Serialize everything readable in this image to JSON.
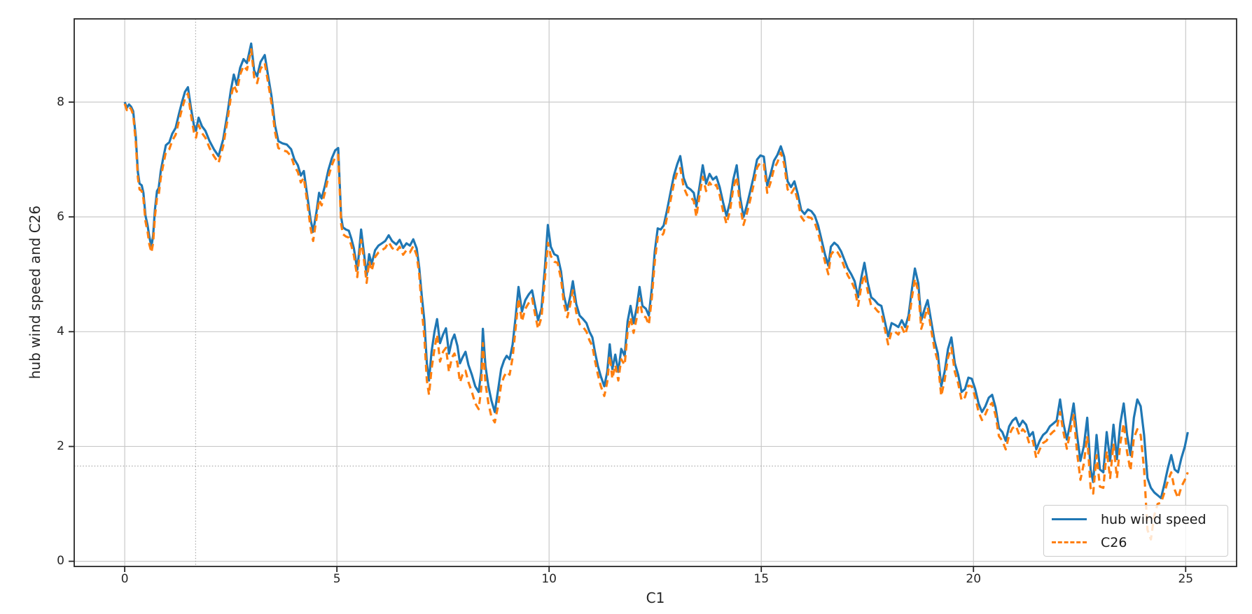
{
  "chart_data": {
    "type": "line",
    "title": "",
    "xlabel": "C1",
    "ylabel": "hub wind speed and C26",
    "xlim": [
      -1.19,
      26.2
    ],
    "ylim": [
      -0.09,
      9.45
    ],
    "x_ticks": [
      0,
      5,
      10,
      15,
      20,
      25
    ],
    "y_ticks": [
      0,
      2,
      4,
      6,
      8
    ],
    "grid": true,
    "legend_position": "lower right",
    "crosshair": {
      "x": 1.67,
      "y": 1.66
    },
    "colors": {
      "series1": "#1f77b4",
      "series2": "#ff7f0e",
      "grid": "#c9c9c9",
      "crosshair": "#999999",
      "spine": "#262626",
      "text": "#262626"
    },
    "x": [
      0.0,
      0.05,
      0.1,
      0.15,
      0.2,
      0.26,
      0.31,
      0.35,
      0.4,
      0.44,
      0.49,
      0.54,
      0.58,
      0.63,
      0.67,
      0.71,
      0.76,
      0.8,
      0.85,
      0.9,
      0.97,
      1.05,
      1.12,
      1.2,
      1.28,
      1.35,
      1.42,
      1.49,
      1.56,
      1.63,
      1.68,
      1.74,
      1.82,
      1.9,
      2.0,
      2.1,
      2.21,
      2.32,
      2.42,
      2.5,
      2.57,
      2.64,
      2.72,
      2.8,
      2.88,
      2.98,
      3.05,
      3.12,
      3.2,
      3.3,
      3.38,
      3.46,
      3.54,
      3.62,
      3.72,
      3.82,
      3.92,
      4.0,
      4.08,
      4.15,
      4.22,
      4.3,
      4.38,
      4.44,
      4.52,
      4.58,
      4.64,
      4.72,
      4.8,
      4.88,
      4.96,
      5.03,
      5.1,
      5.14,
      5.21,
      5.28,
      5.34,
      5.4,
      5.48,
      5.53,
      5.57,
      5.63,
      5.7,
      5.76,
      5.82,
      5.9,
      5.98,
      6.06,
      6.14,
      6.22,
      6.3,
      6.4,
      6.48,
      6.56,
      6.64,
      6.72,
      6.8,
      6.88,
      6.94,
      7.0,
      7.06,
      7.12,
      7.17,
      7.23,
      7.3,
      7.36,
      7.43,
      7.5,
      7.57,
      7.64,
      7.71,
      7.77,
      7.84,
      7.9,
      7.96,
      8.03,
      8.1,
      8.18,
      8.26,
      8.34,
      8.4,
      8.44,
      8.5,
      8.57,
      8.64,
      8.72,
      8.8,
      8.87,
      8.94,
      9.0,
      9.07,
      9.14,
      9.21,
      9.28,
      9.36,
      9.44,
      9.52,
      9.6,
      9.67,
      9.74,
      9.82,
      9.9,
      9.97,
      10.04,
      10.12,
      10.2,
      10.28,
      10.35,
      10.43,
      10.5,
      10.56,
      10.64,
      10.72,
      10.8,
      10.88,
      10.95,
      11.02,
      11.08,
      11.15,
      11.22,
      11.3,
      11.37,
      11.43,
      11.49,
      11.56,
      11.63,
      11.7,
      11.78,
      11.85,
      11.92,
      11.99,
      12.06,
      12.13,
      12.2,
      12.28,
      12.35,
      12.42,
      12.49,
      12.56,
      12.63,
      12.7,
      12.78,
      12.86,
      12.94,
      13.02,
      13.09,
      13.17,
      13.25,
      13.33,
      13.41,
      13.47,
      13.55,
      13.62,
      13.7,
      13.78,
      13.86,
      13.94,
      14.02,
      14.1,
      14.18,
      14.26,
      14.34,
      14.42,
      14.5,
      14.58,
      14.66,
      14.74,
      14.82,
      14.9,
      14.98,
      15.06,
      15.14,
      15.22,
      15.3,
      15.38,
      15.46,
      15.54,
      15.62,
      15.7,
      15.78,
      15.86,
      15.94,
      16.02,
      16.1,
      16.18,
      16.26,
      16.34,
      16.42,
      16.5,
      16.58,
      16.64,
      16.72,
      16.8,
      16.88,
      16.96,
      17.04,
      17.12,
      17.2,
      17.28,
      17.36,
      17.43,
      17.51,
      17.59,
      17.67,
      17.75,
      17.83,
      17.91,
      17.99,
      18.07,
      18.15,
      18.23,
      18.31,
      18.39,
      18.47,
      18.55,
      18.62,
      18.7,
      18.77,
      18.85,
      18.92,
      19.0,
      19.08,
      19.16,
      19.24,
      19.32,
      19.4,
      19.48,
      19.56,
      19.64,
      19.72,
      19.8,
      19.88,
      19.96,
      20.04,
      20.12,
      20.2,
      20.28,
      20.36,
      20.44,
      20.52,
      20.6,
      20.68,
      20.76,
      20.84,
      20.92,
      21.0,
      21.08,
      21.16,
      21.24,
      21.32,
      21.4,
      21.48,
      21.56,
      21.64,
      21.72,
      21.8,
      21.88,
      21.96,
      22.04,
      22.12,
      22.2,
      22.28,
      22.36,
      22.44,
      22.52,
      22.6,
      22.68,
      22.76,
      22.82,
      22.9,
      22.98,
      23.06,
      23.14,
      23.22,
      23.3,
      23.38,
      23.46,
      23.54,
      23.62,
      23.7,
      23.78,
      23.86,
      23.94,
      24.02,
      24.1,
      24.18,
      24.26,
      24.34,
      24.42,
      24.5,
      24.58,
      24.66,
      24.74,
      24.82,
      24.9,
      24.98,
      25.05
    ],
    "series": [
      {
        "name": "hub wind speed",
        "color": "#1f77b4",
        "style": "solid",
        "values": [
          8.0,
          7.9,
          7.96,
          7.92,
          7.84,
          7.4,
          6.78,
          6.58,
          6.55,
          6.42,
          6.02,
          5.85,
          5.65,
          5.48,
          5.68,
          6.12,
          6.45,
          6.5,
          6.8,
          7.0,
          7.25,
          7.3,
          7.45,
          7.55,
          7.8,
          8.0,
          8.18,
          8.26,
          7.9,
          7.6,
          7.5,
          7.73,
          7.58,
          7.5,
          7.32,
          7.18,
          7.06,
          7.35,
          7.8,
          8.2,
          8.48,
          8.3,
          8.6,
          8.75,
          8.68,
          9.02,
          8.55,
          8.45,
          8.7,
          8.82,
          8.45,
          8.1,
          7.6,
          7.32,
          7.28,
          7.26,
          7.18,
          7.0,
          6.9,
          6.72,
          6.8,
          6.38,
          5.95,
          5.74,
          6.1,
          6.42,
          6.32,
          6.55,
          6.82,
          7.02,
          7.16,
          7.2,
          6.0,
          5.82,
          5.78,
          5.76,
          5.62,
          5.45,
          5.08,
          5.45,
          5.78,
          5.42,
          4.98,
          5.35,
          5.18,
          5.42,
          5.5,
          5.54,
          5.58,
          5.68,
          5.58,
          5.52,
          5.6,
          5.46,
          5.54,
          5.5,
          5.61,
          5.45,
          5.12,
          4.62,
          4.2,
          3.45,
          3.15,
          3.65,
          4.0,
          4.22,
          3.8,
          3.95,
          4.06,
          3.62,
          3.85,
          3.95,
          3.75,
          3.45,
          3.55,
          3.65,
          3.42,
          3.25,
          3.05,
          2.95,
          3.3,
          4.05,
          3.4,
          3.05,
          2.8,
          2.6,
          3.0,
          3.35,
          3.5,
          3.58,
          3.52,
          3.78,
          4.25,
          4.78,
          4.35,
          4.55,
          4.65,
          4.72,
          4.45,
          4.2,
          4.4,
          5.1,
          5.86,
          5.48,
          5.35,
          5.32,
          5.05,
          4.62,
          4.38,
          4.62,
          4.88,
          4.48,
          4.28,
          4.22,
          4.15,
          4.0,
          3.9,
          3.65,
          3.4,
          3.22,
          3.05,
          3.3,
          3.78,
          3.35,
          3.6,
          3.3,
          3.7,
          3.58,
          4.18,
          4.45,
          4.15,
          4.4,
          4.78,
          4.45,
          4.4,
          4.28,
          4.75,
          5.4,
          5.8,
          5.78,
          5.85,
          6.12,
          6.42,
          6.72,
          6.92,
          7.06,
          6.68,
          6.52,
          6.48,
          6.42,
          6.18,
          6.55,
          6.9,
          6.58,
          6.75,
          6.65,
          6.7,
          6.52,
          6.25,
          6.02,
          6.25,
          6.65,
          6.9,
          6.35,
          6.0,
          6.2,
          6.45,
          6.7,
          7.0,
          7.07,
          7.05,
          6.55,
          6.75,
          6.98,
          7.08,
          7.23,
          7.05,
          6.62,
          6.52,
          6.62,
          6.4,
          6.12,
          6.05,
          6.13,
          6.1,
          6.02,
          5.85,
          5.6,
          5.35,
          5.15,
          5.48,
          5.55,
          5.5,
          5.4,
          5.25,
          5.1,
          5.0,
          4.88,
          4.6,
          4.95,
          5.2,
          4.85,
          4.6,
          4.55,
          4.48,
          4.45,
          4.18,
          3.92,
          4.15,
          4.12,
          4.08,
          4.2,
          4.08,
          4.28,
          4.75,
          5.1,
          4.84,
          4.2,
          4.4,
          4.55,
          4.2,
          3.85,
          3.62,
          3.05,
          3.3,
          3.7,
          3.9,
          3.45,
          3.25,
          2.95,
          3.0,
          3.2,
          3.18,
          3.0,
          2.75,
          2.6,
          2.7,
          2.85,
          2.9,
          2.68,
          2.32,
          2.25,
          2.1,
          2.35,
          2.45,
          2.5,
          2.35,
          2.45,
          2.38,
          2.18,
          2.25,
          1.95,
          2.1,
          2.2,
          2.25,
          2.35,
          2.4,
          2.45,
          2.82,
          2.4,
          2.12,
          2.4,
          2.75,
          2.2,
          1.75,
          2.0,
          2.5,
          1.6,
          1.38,
          2.2,
          1.6,
          1.55,
          2.25,
          1.75,
          2.38,
          1.78,
          2.4,
          2.75,
          2.2,
          1.85,
          2.5,
          2.82,
          2.7,
          2.2,
          1.45,
          1.28,
          1.2,
          1.15,
          1.1,
          1.35,
          1.62,
          1.85,
          1.6,
          1.55,
          1.8,
          2.0,
          2.25
        ]
      },
      {
        "name": "C26",
        "color": "#ff7f0e",
        "style": "dashed",
        "values": [
          7.97,
          7.86,
          7.92,
          7.88,
          7.78,
          7.3,
          6.68,
          6.48,
          6.45,
          6.32,
          5.92,
          5.74,
          5.52,
          5.38,
          5.55,
          6.0,
          6.33,
          6.38,
          6.68,
          6.88,
          7.13,
          7.18,
          7.33,
          7.43,
          7.68,
          7.88,
          8.06,
          8.15,
          7.78,
          7.48,
          7.38,
          7.6,
          7.46,
          7.38,
          7.2,
          7.06,
          6.94,
          7.23,
          7.68,
          8.08,
          8.3,
          8.18,
          8.48,
          8.63,
          8.56,
          8.92,
          8.43,
          8.33,
          8.58,
          8.68,
          8.33,
          7.98,
          7.48,
          7.2,
          7.16,
          7.14,
          7.06,
          6.88,
          6.78,
          6.6,
          6.68,
          6.26,
          5.8,
          5.58,
          5.98,
          6.3,
          6.2,
          6.43,
          6.7,
          6.9,
          7.04,
          7.08,
          5.88,
          5.7,
          5.66,
          5.64,
          5.5,
          5.33,
          4.95,
          5.33,
          5.6,
          5.3,
          4.85,
          5.23,
          5.06,
          5.3,
          5.38,
          5.42,
          5.46,
          5.56,
          5.46,
          5.4,
          5.48,
          5.34,
          5.42,
          5.38,
          5.49,
          5.33,
          5.0,
          4.4,
          3.9,
          3.15,
          2.9,
          3.35,
          3.7,
          3.95,
          3.48,
          3.65,
          3.72,
          3.3,
          3.55,
          3.62,
          3.45,
          3.12,
          3.25,
          3.32,
          3.12,
          2.95,
          2.75,
          2.65,
          3.0,
          3.8,
          3.1,
          2.75,
          2.52,
          2.42,
          2.72,
          3.08,
          3.22,
          3.3,
          3.25,
          3.55,
          4.05,
          4.58,
          4.18,
          4.4,
          4.5,
          4.58,
          4.3,
          4.05,
          4.25,
          4.9,
          5.55,
          5.32,
          5.22,
          5.2,
          4.92,
          4.48,
          4.25,
          4.48,
          4.72,
          4.33,
          4.13,
          4.08,
          4.0,
          3.85,
          3.75,
          3.5,
          3.25,
          3.05,
          2.88,
          3.12,
          3.58,
          3.18,
          3.42,
          3.15,
          3.52,
          3.42,
          4.0,
          4.25,
          3.98,
          4.22,
          4.58,
          4.28,
          4.25,
          4.12,
          4.58,
          5.22,
          5.65,
          5.64,
          5.72,
          6.0,
          6.28,
          6.58,
          6.78,
          6.85,
          6.52,
          6.38,
          6.35,
          6.28,
          6.0,
          6.4,
          6.7,
          6.45,
          6.6,
          6.52,
          6.56,
          6.38,
          6.1,
          5.88,
          6.1,
          6.5,
          6.7,
          6.2,
          5.86,
          6.06,
          6.3,
          6.56,
          6.86,
          6.95,
          6.92,
          6.42,
          6.6,
          6.84,
          6.95,
          7.12,
          6.92,
          6.48,
          6.4,
          6.5,
          6.28,
          6.0,
          5.92,
          6.0,
          5.98,
          5.9,
          5.72,
          5.48,
          5.22,
          5.0,
          5.34,
          5.42,
          5.38,
          5.28,
          5.12,
          4.98,
          4.88,
          4.75,
          4.45,
          4.8,
          5.0,
          4.7,
          4.45,
          4.42,
          4.35,
          4.32,
          4.05,
          3.78,
          4.0,
          4.0,
          3.95,
          4.08,
          3.95,
          4.15,
          4.6,
          4.92,
          4.7,
          4.05,
          4.25,
          4.42,
          4.05,
          3.7,
          3.48,
          2.88,
          3.15,
          3.55,
          3.72,
          3.3,
          3.1,
          2.8,
          2.86,
          3.06,
          3.05,
          2.86,
          2.6,
          2.46,
          2.56,
          2.7,
          2.76,
          2.54,
          2.18,
          2.1,
          1.95,
          2.2,
          2.32,
          2.36,
          2.2,
          2.3,
          2.24,
          2.04,
          2.1,
          1.8,
          1.95,
          2.06,
          2.1,
          2.2,
          2.26,
          2.3,
          2.6,
          2.25,
          1.96,
          2.25,
          2.55,
          1.9,
          1.42,
          1.7,
          2.18,
          1.28,
          1.18,
          1.85,
          1.3,
          1.28,
          1.92,
          1.45,
          2.05,
          1.45,
          2.05,
          2.4,
          1.9,
          1.58,
          2.15,
          2.3,
          2.2,
          1.6,
          0.55,
          0.38,
          0.8,
          1.0,
          1.02,
          1.2,
          1.4,
          1.55,
          1.25,
          1.1,
          1.3,
          1.42,
          1.55
        ]
      }
    ]
  }
}
